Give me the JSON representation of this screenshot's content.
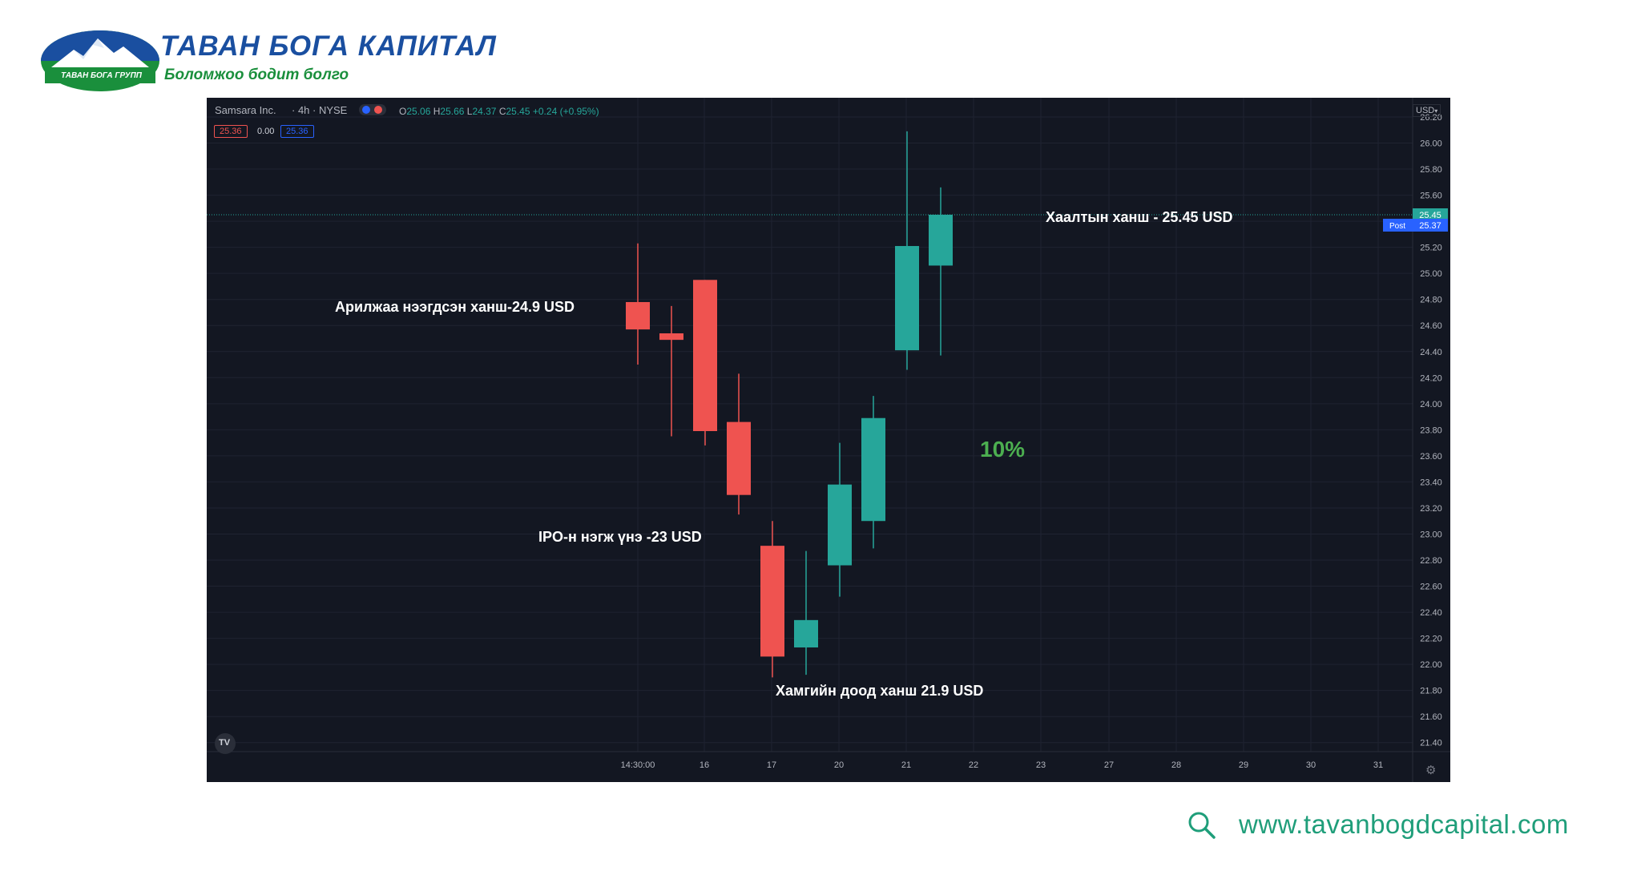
{
  "logo": {
    "title": "ТАВАН БОГА КАПИТАЛ",
    "subtitle": "Боломжоо бодит болго",
    "badge": "ТАВАН БОГА ГРУПП",
    "colors": {
      "blue": "#1a4fa0",
      "green": "#1a8f3c"
    }
  },
  "header": {
    "symbol": "Samsara Inc.",
    "interval": "· 4h · NYSE",
    "ohlc": {
      "o_label": "O",
      "o": "25.06",
      "h_label": "H",
      "h": "25.66",
      "l_label": "L",
      "l": "24.37",
      "c_label": "C",
      "c": "25.45",
      "change": "+0.24 (+0.95%)"
    },
    "sell_price": "25.36",
    "spread": "0.00",
    "buy_price": "25.36",
    "currency": "USD",
    "tv_logo": "TV"
  },
  "price_tags": {
    "last": "25.45",
    "post_label": "Post",
    "post": "25.37"
  },
  "colors": {
    "background": "#131722",
    "up": "#26a69a",
    "down": "#ef5350",
    "grid": "#1f2331",
    "text": "#b2b5be",
    "post": "#2962ff",
    "percent": "#4caf50"
  },
  "chart_data": {
    "type": "candlestick",
    "y_axis_ticks": [
      "21.40",
      "21.60",
      "21.80",
      "22.00",
      "22.20",
      "22.40",
      "22.60",
      "22.80",
      "23.00",
      "23.20",
      "23.40",
      "23.60",
      "23.80",
      "24.00",
      "24.20",
      "24.40",
      "24.60",
      "24.80",
      "25.00",
      "25.20",
      "25.40",
      "25.60",
      "25.80",
      "26.00",
      "26.20"
    ],
    "ylim": [
      21.3,
      26.2
    ],
    "x_axis_ticks": [
      "14:30:00",
      "16",
      "17",
      "20",
      "21",
      "22",
      "23",
      "27",
      "28",
      "29",
      "30",
      "31"
    ],
    "candles": [
      {
        "open": 24.78,
        "high": 25.23,
        "low": 24.3,
        "close": 24.57
      },
      {
        "open": 24.54,
        "high": 24.75,
        "low": 23.75,
        "close": 24.49
      },
      {
        "open": 24.95,
        "high": 24.95,
        "low": 23.68,
        "close": 23.79
      },
      {
        "open": 23.86,
        "high": 24.23,
        "low": 23.15,
        "close": 23.3
      },
      {
        "open": 22.91,
        "high": 23.1,
        "low": 21.9,
        "close": 22.06
      },
      {
        "open": 22.13,
        "high": 22.87,
        "low": 21.92,
        "close": 22.34
      },
      {
        "open": 22.76,
        "high": 23.7,
        "low": 22.52,
        "close": 23.38
      },
      {
        "open": 23.1,
        "high": 24.06,
        "low": 22.89,
        "close": 23.89
      },
      {
        "open": 24.41,
        "high": 26.09,
        "low": 24.26,
        "close": 25.21
      },
      {
        "open": 25.06,
        "high": 25.66,
        "low": 24.37,
        "close": 25.45
      }
    ],
    "last_price_line": 25.45,
    "annotations": [
      {
        "text": "Арилжаа нээгдсэн ханш-24.9 USD"
      },
      {
        "text": "Хаалтын ханш - 25.45 USD"
      },
      {
        "text": "IPO-н нэгж үнэ -23 USD"
      },
      {
        "text": "Хамгийн доод ханш 21.9 USD"
      },
      {
        "text": "10%"
      }
    ]
  },
  "footer": {
    "url": "www.tavanbogdcapital.com",
    "icon": "search-icon"
  }
}
